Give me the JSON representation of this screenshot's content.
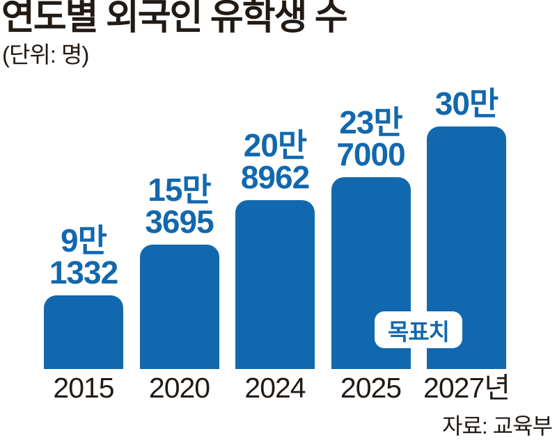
{
  "title": "연도별 외국인 유학생 수",
  "unit_label": "(단위: 명)",
  "source": "자료: 교육부",
  "target_badge": "목표치",
  "colors": {
    "bar": "#1268ae",
    "value_text": "#1268ae",
    "dark_text": "#221a15",
    "badge_bg": "#ffffff",
    "background": "#ffffff"
  },
  "chart_data": {
    "type": "bar",
    "title": "연도별 외국인 유학생 수",
    "ylabel": "명",
    "ylim": [
      0,
      300000
    ],
    "grid": false,
    "legend": "none",
    "categories": [
      "2015",
      "2020",
      "2024",
      "2025",
      "2027년"
    ],
    "values": [
      91332,
      153695,
      208962,
      237000,
      300000
    ],
    "value_labels": [
      [
        "9만",
        "1332"
      ],
      [
        "15만",
        "3695"
      ],
      [
        "20만",
        "8962"
      ],
      [
        "23만",
        "7000"
      ],
      [
        "30만"
      ]
    ],
    "annotation": "목표치",
    "annotation_applies_to": [
      "2025",
      "2027년"
    ]
  }
}
